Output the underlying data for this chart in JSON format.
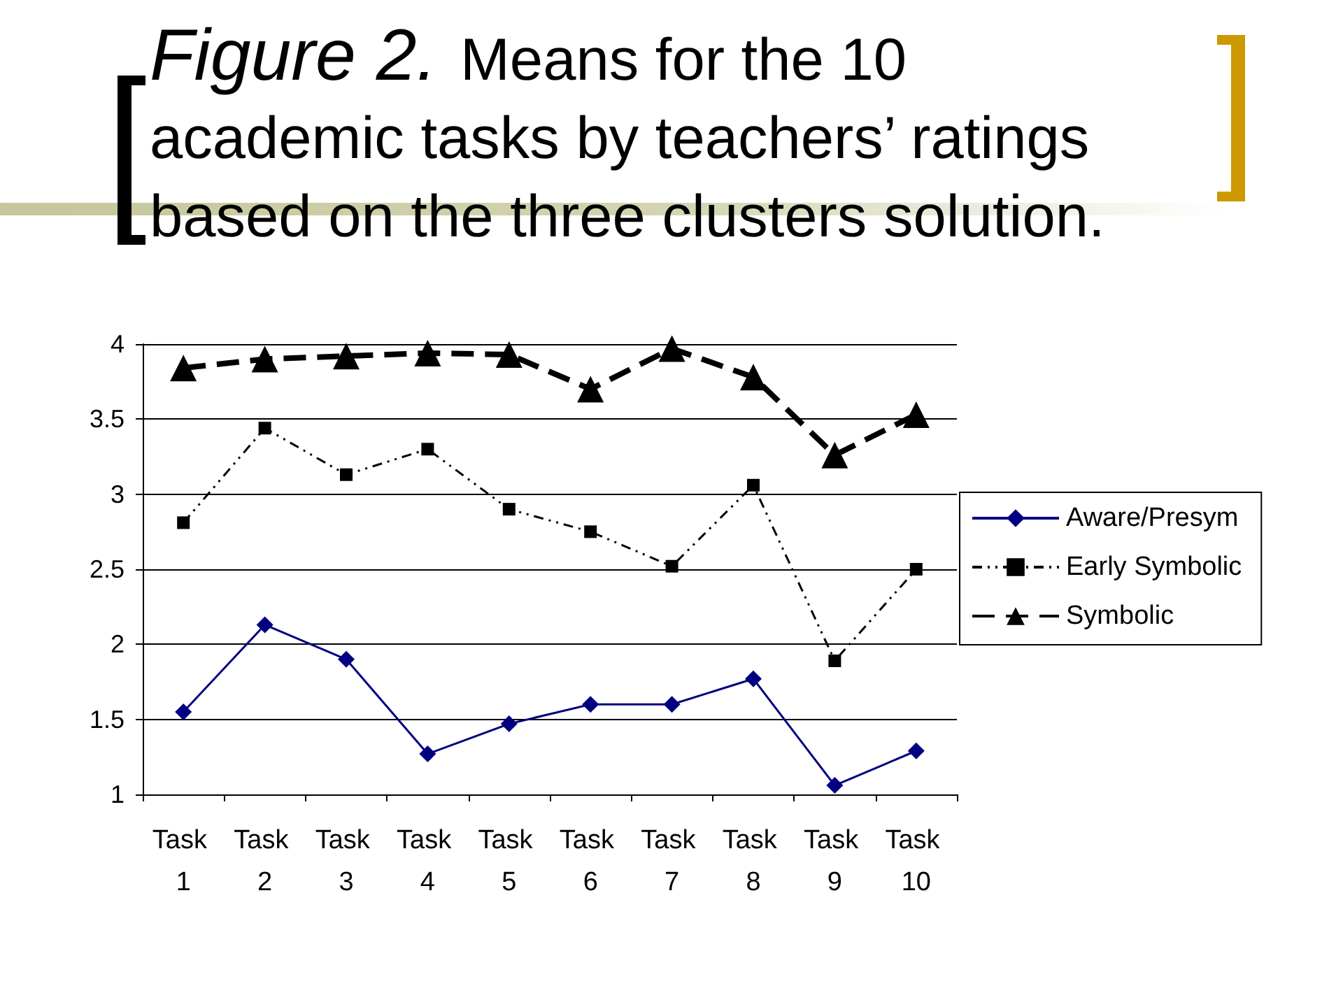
{
  "chart_data": {
    "type": "line",
    "title": "Figure 2. Means for the 10 academic tasks by teachers’ ratings based on the three clusters solution.",
    "categories": [
      "Task 1",
      "Task 2",
      "Task 3",
      "Task 4",
      "Task 5",
      "Task 6",
      "Task 7",
      "Task 8",
      "Task 9",
      "Task 10"
    ],
    "series": [
      {
        "name": "Aware/Presym",
        "color": "#000080",
        "marker": "diamond",
        "line_style": "solid",
        "values": [
          1.55,
          2.13,
          1.9,
          1.27,
          1.47,
          1.6,
          1.6,
          1.77,
          1.06,
          1.29
        ]
      },
      {
        "name": "Early Symbolic",
        "color": "#000000",
        "marker": "square",
        "line_style": "dotted",
        "values": [
          2.81,
          3.44,
          3.13,
          3.3,
          2.9,
          2.75,
          2.52,
          3.06,
          1.89,
          2.5
        ]
      },
      {
        "name": "Symbolic",
        "color": "#000000",
        "marker": "triangle",
        "line_style": "dashed",
        "values": [
          3.84,
          3.9,
          3.92,
          3.94,
          3.93,
          3.7,
          3.97,
          3.78,
          3.26,
          3.53
        ]
      }
    ],
    "ylim": [
      1,
      4
    ],
    "yticks": [
      1,
      1.5,
      2,
      2.5,
      3,
      3.5,
      4
    ],
    "grid": "y",
    "legend": "right"
  }
}
